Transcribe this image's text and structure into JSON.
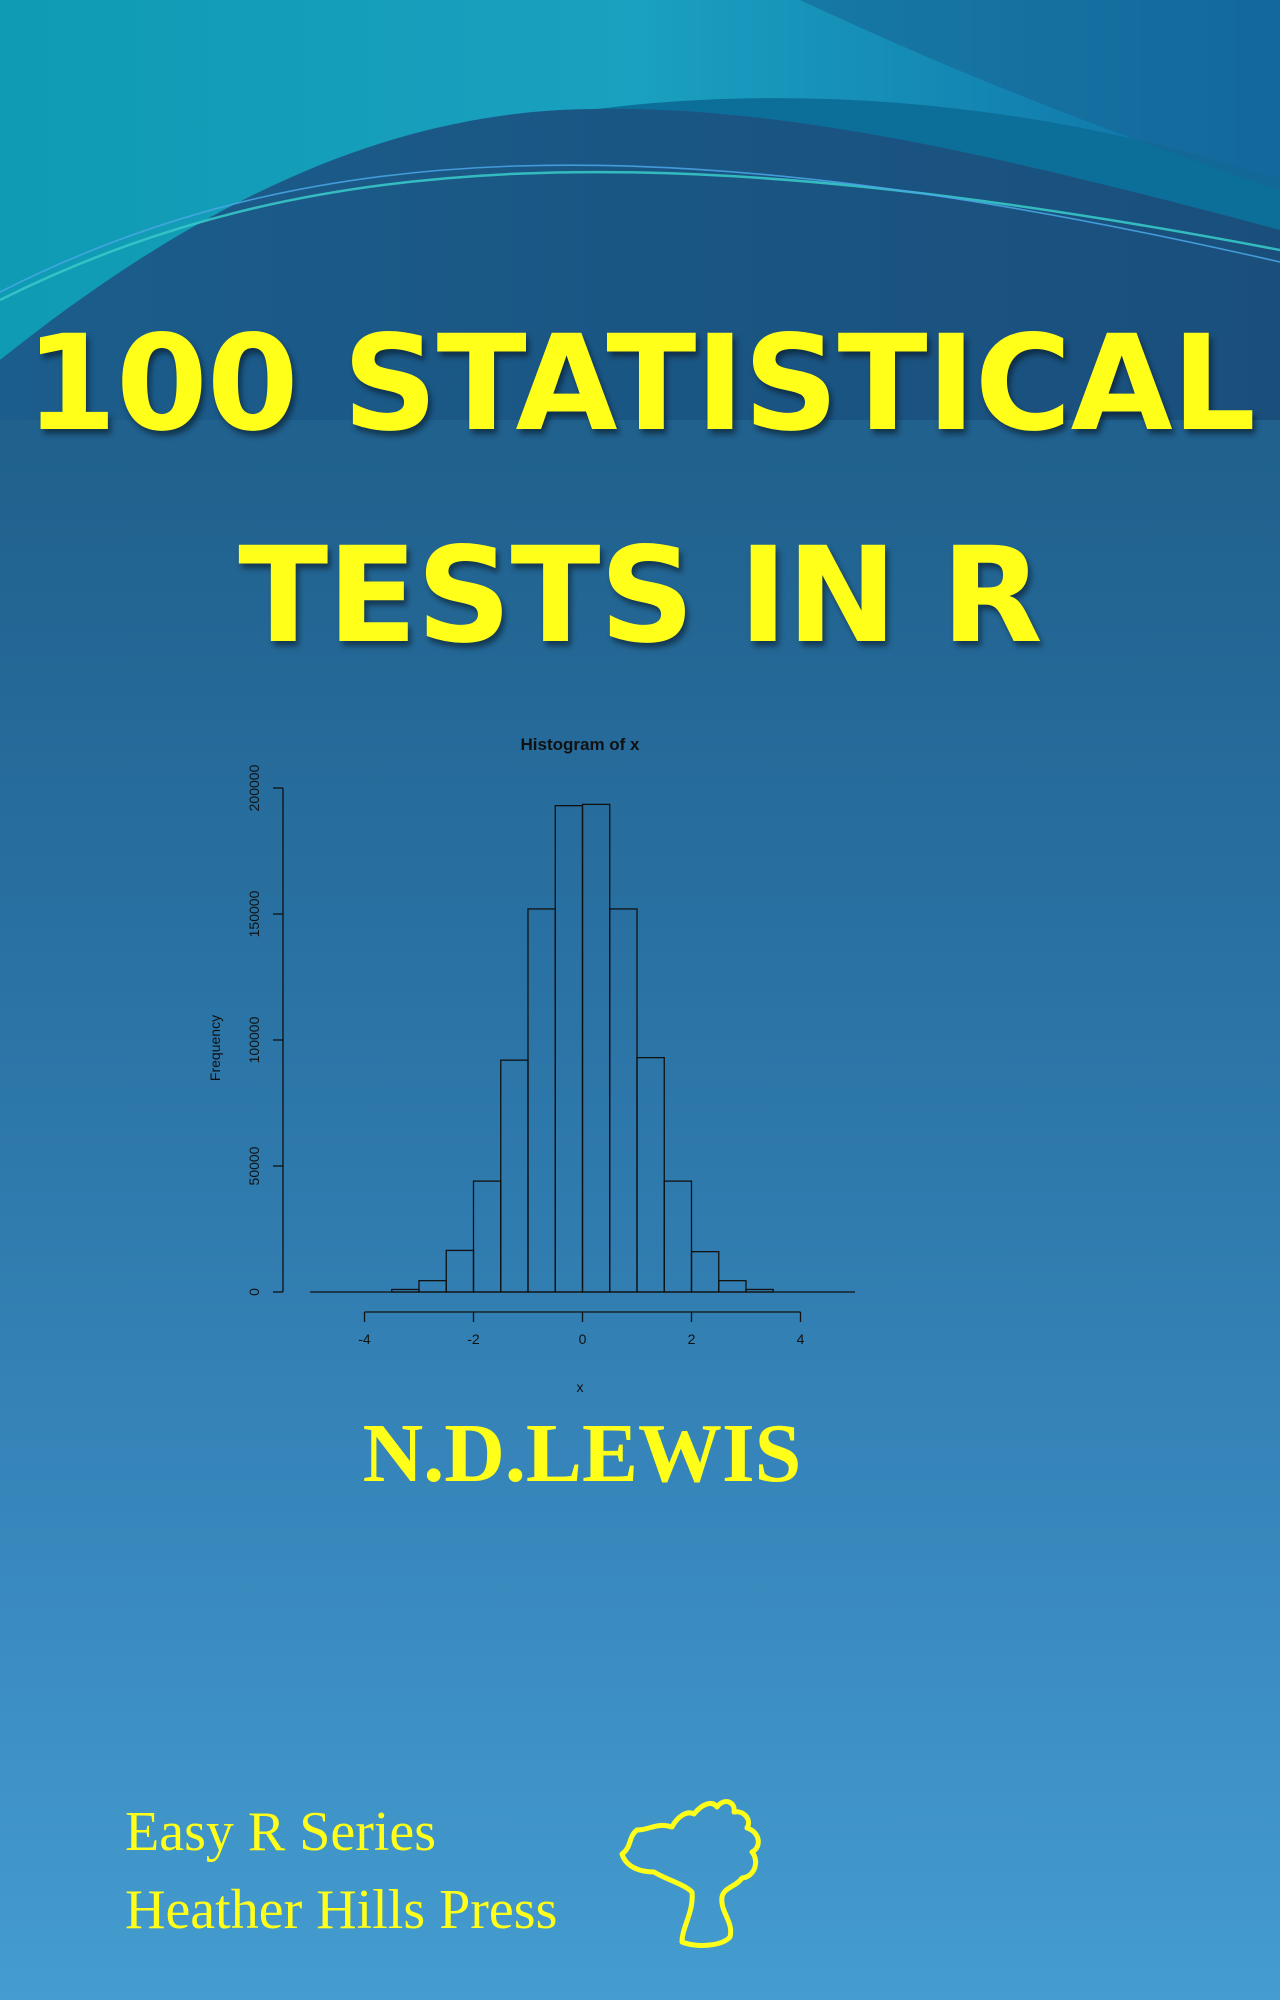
{
  "cover": {
    "title_line_1": "100 STATISTICAL",
    "title_line_2": "TESTS IN R",
    "author": "N.D.LEWIS",
    "series": "Easy R Series",
    "publisher": "Heather Hills Press",
    "logo_icon": "tree-logo-icon",
    "colors": {
      "title": "#ffff1a",
      "background_top": "#1b5a85",
      "background_bottom": "#449ccf"
    }
  },
  "chart_data": {
    "type": "bar",
    "title": "Histogram of x",
    "xlabel": "x",
    "ylabel": "Frequency",
    "bin_edges": [
      -3.5,
      -3.0,
      -2.5,
      -2.0,
      -1.5,
      -1.0,
      -0.5,
      0.0,
      0.5,
      1.0,
      1.5,
      2.0,
      2.5,
      3.0,
      3.5
    ],
    "values": [
      1000,
      4500,
      16500,
      44000,
      92000,
      152000,
      193000,
      193500,
      152000,
      93000,
      44000,
      16000,
      4500,
      1000
    ],
    "xlim": [
      -5,
      5
    ],
    "ylim": [
      0,
      200000
    ],
    "x_ticks": [
      "-4",
      "-2",
      "0",
      "2",
      "4"
    ],
    "y_ticks": [
      "0",
      "50000",
      "100000",
      "150000",
      "200000"
    ],
    "grid": false,
    "legend": "none"
  }
}
